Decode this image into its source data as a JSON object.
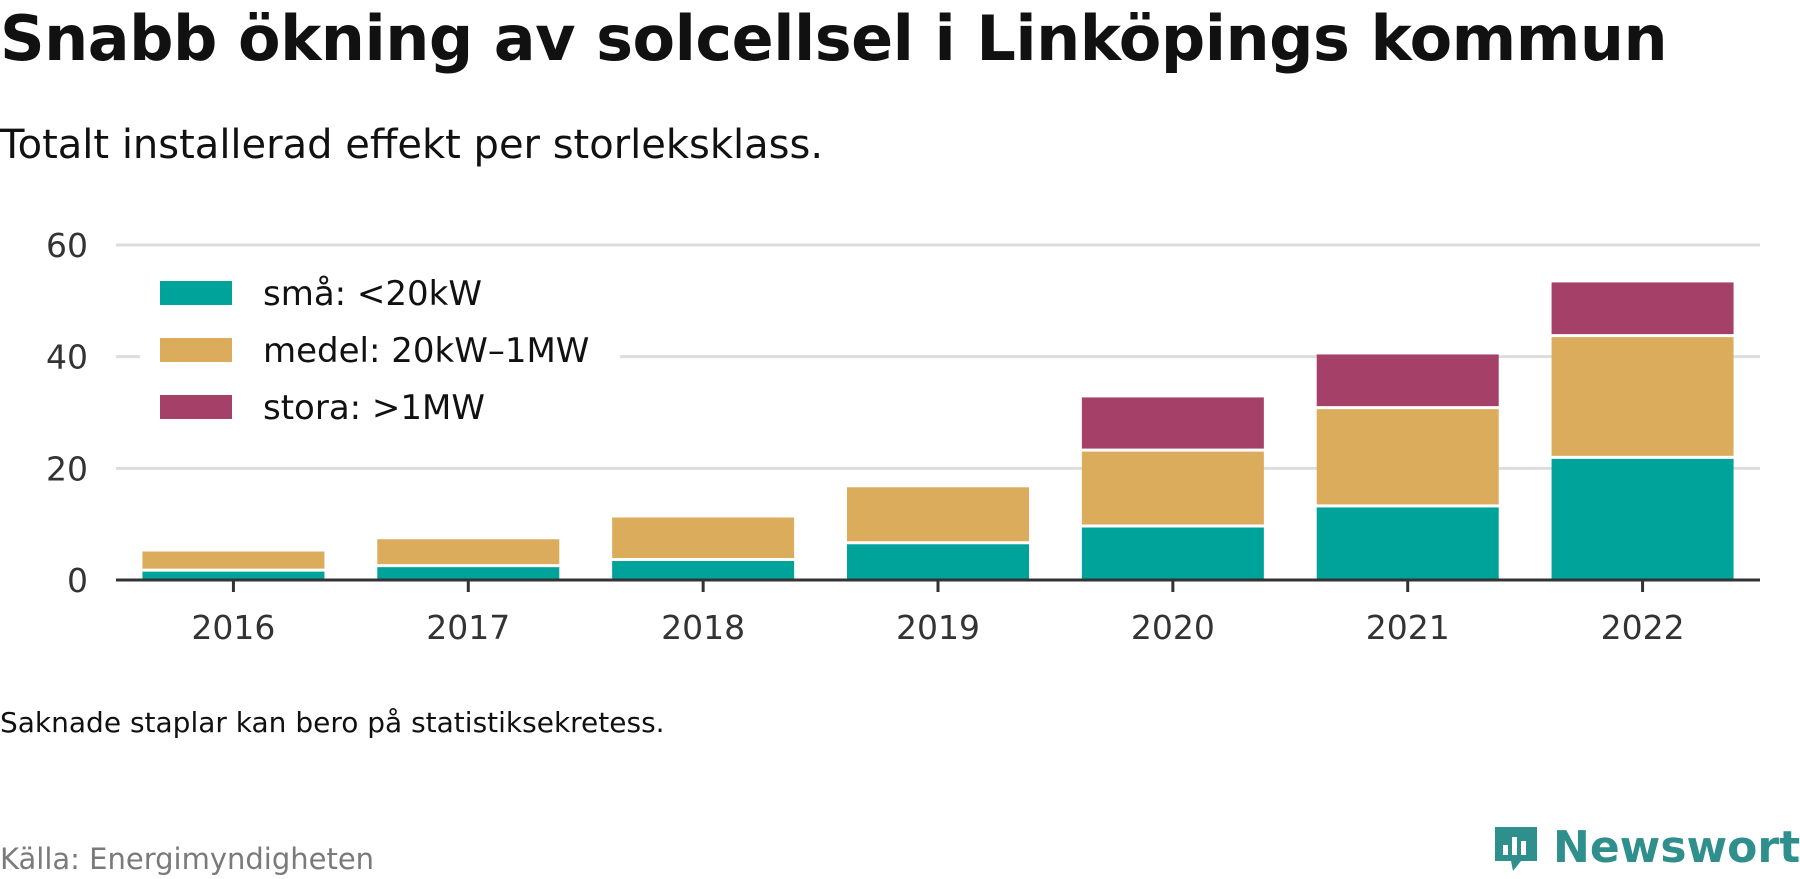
{
  "title": "Snabb ökning av solcellsel i Linköpings kommun",
  "subtitle": "Totalt installerad effekt per storleksklass.",
  "note": "Saknade staplar kan bero på statistiksekretess.",
  "source": "Källa: Energimyndigheten",
  "brand": "Newsworthy",
  "colors": {
    "small": "#00a39a",
    "medium": "#dbac5b",
    "large": "#a54068",
    "brand": "#2f8f8c"
  },
  "chart_data": {
    "type": "bar",
    "stacked": true,
    "categories": [
      "2016",
      "2017",
      "2018",
      "2019",
      "2020",
      "2021",
      "2022"
    ],
    "series": [
      {
        "name": "små: <20kW",
        "color": "#00a39a",
        "values": [
          1.5,
          2.3,
          3.4,
          6.4,
          9.4,
          13.0,
          21.7
        ]
      },
      {
        "name": "medel: 20kW–1MW",
        "color": "#dbac5b",
        "values": [
          3.6,
          5.0,
          7.8,
          10.2,
          13.6,
          17.6,
          21.8
        ]
      },
      {
        "name": "stora: >1MW",
        "color": "#a54068",
        "values": [
          0,
          0,
          0,
          0,
          9.7,
          9.8,
          9.8
        ]
      }
    ],
    "ylim": [
      0,
      60
    ],
    "yticks": [
      0,
      20,
      40,
      60
    ],
    "grid": true,
    "legend": "top-left"
  }
}
